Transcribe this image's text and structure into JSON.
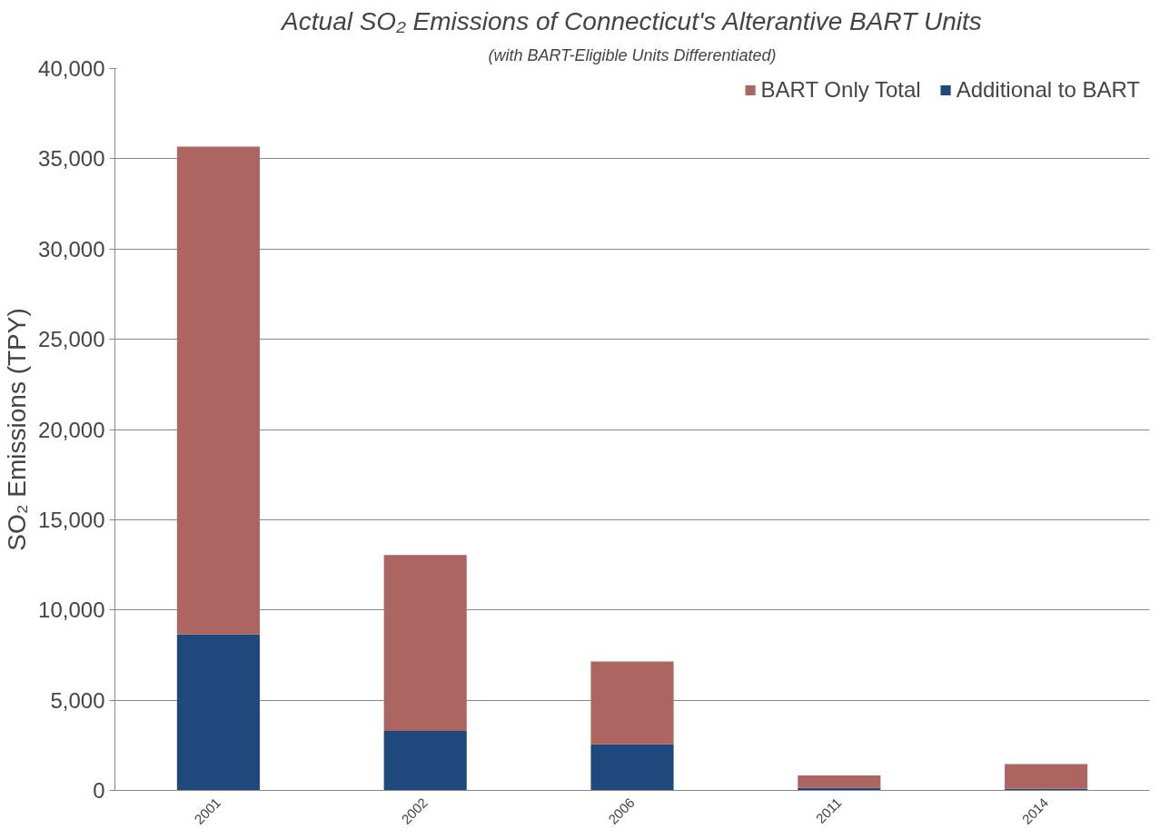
{
  "chart_data": {
    "type": "bar",
    "stacked": true,
    "title": "Actual SO₂ Emissions of Connecticut's Alterantive BART Units",
    "subtitle": "(with BART-Eligible Units Differentiated)",
    "ylabel": "SO₂ Emissions (TPY)",
    "categories": [
      "2001",
      "2002",
      "2006",
      "2011",
      "2014"
    ],
    "series": [
      {
        "name": "Additional to BART",
        "color": "#1f497d",
        "values": [
          8660,
          3300,
          2550,
          140,
          90
        ]
      },
      {
        "name": "BART Only Total",
        "color": "#ac6561",
        "values": [
          27010,
          9750,
          4600,
          690,
          1370
        ]
      }
    ],
    "ylim": [
      0,
      40000
    ],
    "yticks": [
      {
        "value": 0,
        "label": "0"
      },
      {
        "value": 5000,
        "label": "5,000"
      },
      {
        "value": 10000,
        "label": "10,000"
      },
      {
        "value": 15000,
        "label": "15,000"
      },
      {
        "value": 20000,
        "label": "20,000"
      },
      {
        "value": 25000,
        "label": "25,000"
      },
      {
        "value": 30000,
        "label": "30,000"
      },
      {
        "value": 35000,
        "label": "35,000"
      },
      {
        "value": 40000,
        "label": "40,000"
      }
    ],
    "grid": "y",
    "legend": "top right"
  }
}
